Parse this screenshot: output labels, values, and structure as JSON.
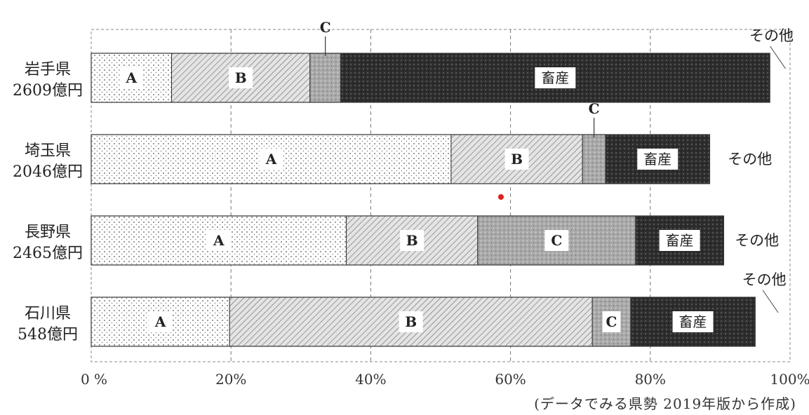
{
  "chart_data": {
    "type": "bar",
    "orientation": "horizontal",
    "stacked": true,
    "percent_stacked": true,
    "categories": [
      [
        "岩手県",
        "2609億円"
      ],
      [
        "埼玉県",
        "2046億円"
      ],
      [
        "長野県",
        "2465億円"
      ],
      [
        "石川県",
        "548億円"
      ]
    ],
    "series": [
      {
        "name": "A",
        "values": [
          11.5,
          51.5,
          36.5,
          19.8
        ]
      },
      {
        "name": "B",
        "values": [
          19.8,
          18.8,
          18.8,
          51.9
        ]
      },
      {
        "name": "C",
        "values": [
          4.4,
          3.3,
          22.6,
          5.5
        ]
      },
      {
        "name": "畜産",
        "values": [
          61.4,
          14.9,
          12.6,
          17.8
        ]
      },
      {
        "name": "その他",
        "values": [
          2.9,
          11.5,
          9.5,
          5.0
        ]
      }
    ],
    "segment_fills": {
      "A": "dots-light",
      "B": "hatch",
      "C": "stipple",
      "畜産": "dark-dots",
      "その他": "white"
    },
    "xaxis": {
      "ticks": [
        0,
        20,
        40,
        60,
        80,
        100
      ],
      "tick_labels": [
        "0 %",
        "20%",
        "40%",
        "60%",
        "80%",
        "100%"
      ],
      "range": [
        0,
        100
      ],
      "grid": "dashed"
    },
    "labels_above": [
      {
        "bar": 0,
        "series": "C",
        "text": "C"
      },
      {
        "bar": 0,
        "series": "その他",
        "text": "その他"
      },
      {
        "bar": 1,
        "series": "C",
        "text": "C"
      },
      {
        "bar": 3,
        "series": "その他",
        "text": "その他"
      }
    ]
  },
  "source_note": "(データでみる県勢 2019年版から作成)"
}
